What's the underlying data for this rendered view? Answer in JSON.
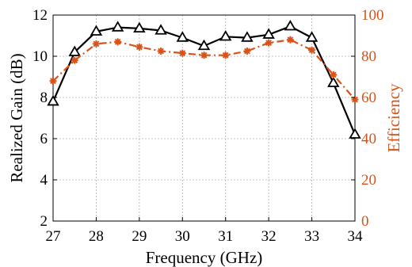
{
  "chart_data": {
    "type": "line",
    "xlabel": "Frequency (GHz)",
    "ylabel_left": "Realized Gain (dB)",
    "ylabel_right": "Efficiency",
    "xlim": [
      27,
      34
    ],
    "ylim_left": [
      2,
      12
    ],
    "ylim_right": [
      0,
      100
    ],
    "x_ticks": [
      "27",
      "28",
      "29",
      "30",
      "31",
      "32",
      "33",
      "34"
    ],
    "y_left_ticks": [
      "2",
      "4",
      "6",
      "8",
      "10",
      "12"
    ],
    "y_right_ticks": [
      "0",
      "20",
      "40",
      "60",
      "80",
      "100"
    ],
    "grid": true,
    "legend": "none",
    "colors": {
      "gain": "#000000",
      "efficiency": "#D95319",
      "grid": "#b0b0b0"
    },
    "series": [
      {
        "axis": "left",
        "marker": "triangle",
        "line_style": "solid",
        "x": [
          27,
          27.5,
          28,
          28.5,
          29,
          29.5,
          30,
          30.5,
          31,
          31.5,
          32,
          32.5,
          33,
          33.5,
          34
        ],
        "values": [
          7.8,
          10.2,
          11.2,
          11.4,
          11.35,
          11.25,
          10.9,
          10.5,
          10.95,
          10.9,
          11.05,
          11.45,
          10.9,
          8.7,
          6.2
        ]
      },
      {
        "axis": "right",
        "marker": "star",
        "line_style": "dash-dot",
        "x": [
          27,
          27.5,
          28,
          28.5,
          29,
          29.5,
          30,
          30.5,
          31,
          31.5,
          32,
          32.5,
          33,
          33.5,
          34
        ],
        "values": [
          68,
          78,
          86,
          87,
          84.5,
          82.5,
          81.5,
          80.5,
          80.5,
          82.5,
          86.5,
          88,
          83,
          71,
          59
        ]
      }
    ]
  }
}
